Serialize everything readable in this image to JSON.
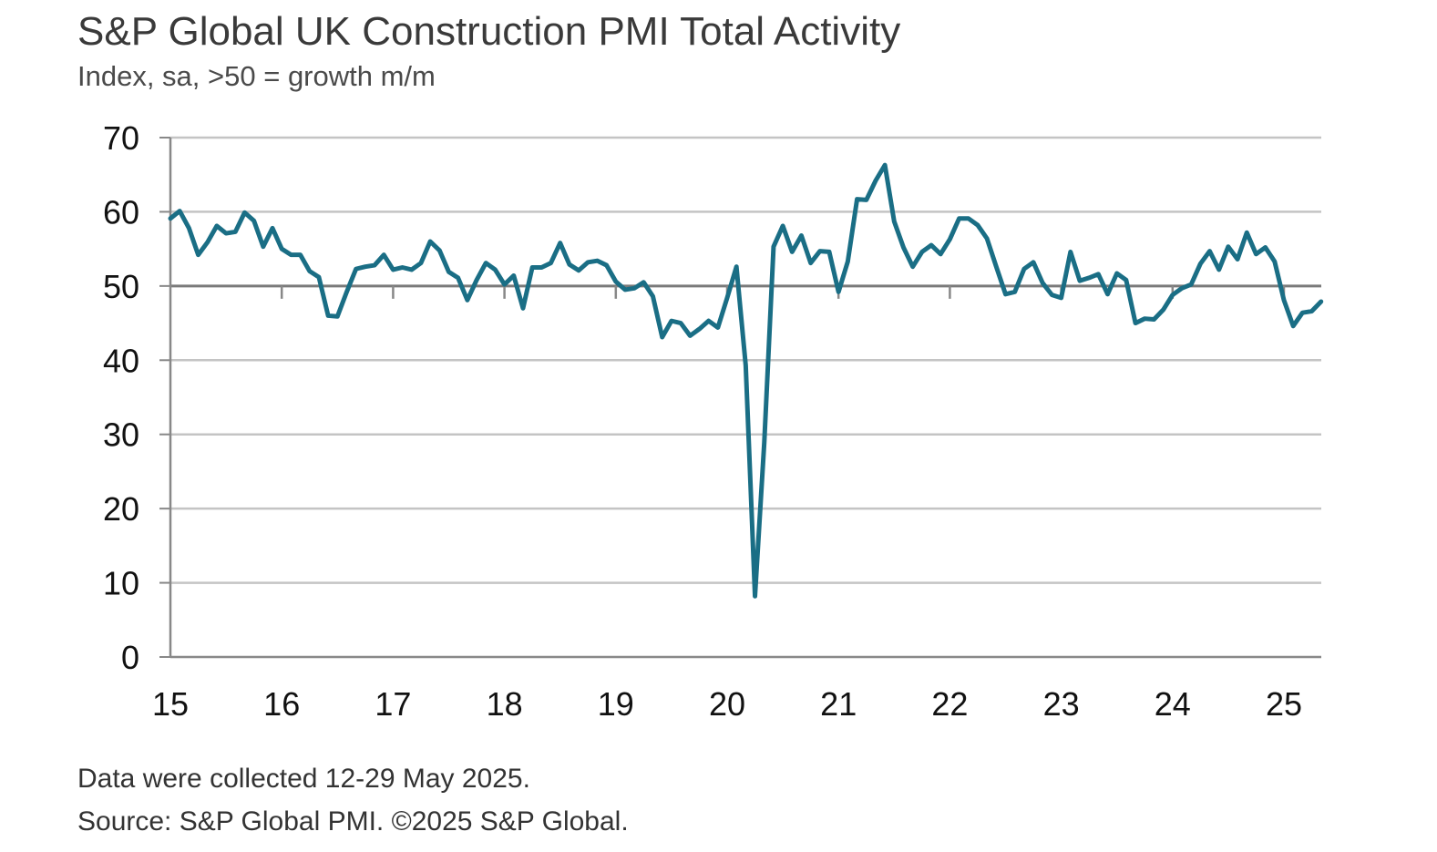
{
  "header": {
    "title": "S&P Global UK Construction PMI Total Activity",
    "subtitle": "Index, sa, >50 = growth m/m"
  },
  "footer": {
    "note": "Data were collected 12-29 May 2025.",
    "source": "Source: S&P Global PMI. ©2025 S&P Global."
  },
  "chart_data": {
    "type": "line",
    "yticks": [
      "0",
      "10",
      "20",
      "30",
      "40",
      "50",
      "60",
      "70"
    ],
    "ylim": [
      0,
      70
    ],
    "reference_line": 50,
    "xticks": [
      "15",
      "16",
      "17",
      "18",
      "19",
      "20",
      "21",
      "22",
      "23",
      "24",
      "25"
    ],
    "x_start": "2015-01",
    "grid": true,
    "line_color": "#1a6e85",
    "series": [
      {
        "values": [
          59.1,
          60.1,
          57.8,
          54.2,
          55.9,
          58.1,
          57.1,
          57.3,
          59.9,
          58.8,
          55.3,
          57.8,
          55.0,
          54.2,
          54.2,
          52.0,
          51.2,
          46.0,
          45.9,
          49.2,
          52.3,
          52.6,
          52.8,
          54.2,
          52.2,
          52.5,
          52.2,
          53.1,
          56.0,
          54.8,
          51.9,
          51.1,
          48.1,
          50.8,
          53.1,
          52.2,
          50.2,
          51.4,
          47.0,
          52.5,
          52.5,
          53.1,
          55.8,
          52.9,
          52.1,
          53.2,
          53.4,
          52.8,
          50.6,
          49.5,
          49.7,
          50.5,
          48.6,
          43.1,
          45.3,
          45.0,
          43.3,
          44.2,
          45.3,
          44.4,
          48.4,
          52.6,
          39.3,
          8.2,
          28.9,
          55.3,
          58.1,
          54.6,
          56.8,
          53.1,
          54.7,
          54.6,
          49.2,
          53.3,
          61.7,
          61.6,
          64.2,
          66.3,
          58.7,
          55.2,
          52.6,
          54.6,
          55.5,
          54.3,
          56.3,
          59.1,
          59.1,
          58.2,
          56.4,
          52.6,
          48.9,
          49.2,
          52.3,
          53.2,
          50.4,
          48.8,
          48.4,
          54.6,
          50.7,
          51.1,
          51.6,
          48.9,
          51.7,
          50.8,
          45.0,
          45.6,
          45.5,
          46.8,
          48.8,
          49.7,
          50.2,
          53.0,
          54.7,
          52.2,
          55.3,
          53.6,
          57.2,
          54.3,
          55.2,
          53.3,
          48.1,
          44.6,
          46.4,
          46.6,
          47.9
        ]
      }
    ]
  }
}
